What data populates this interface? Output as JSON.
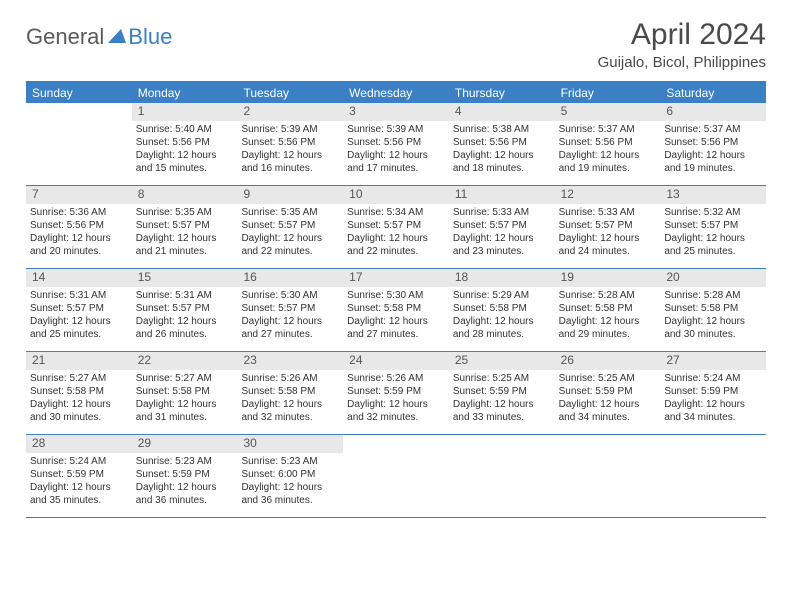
{
  "brand": {
    "part1": "General",
    "part2": "Blue"
  },
  "title": "April 2024",
  "location": "Guijalo, Bicol, Philippines",
  "colors": {
    "header_bg": "#3b7fc4",
    "header_text": "#ffffff",
    "daynum_bg": "#e8e8e8",
    "body_text": "#333333",
    "page_bg": "#ffffff",
    "rule": "#3b7fc4"
  },
  "typography": {
    "title_fontsize": 30,
    "location_fontsize": 15,
    "dayheader_fontsize": 12,
    "daynum_fontsize": 12,
    "body_fontsize": 10
  },
  "day_headers": [
    "Sunday",
    "Monday",
    "Tuesday",
    "Wednesday",
    "Thursday",
    "Friday",
    "Saturday"
  ],
  "weeks": [
    [
      null,
      {
        "n": "1",
        "sr": "Sunrise: 5:40 AM",
        "ss": "Sunset: 5:56 PM",
        "d1": "Daylight: 12 hours",
        "d2": "and 15 minutes."
      },
      {
        "n": "2",
        "sr": "Sunrise: 5:39 AM",
        "ss": "Sunset: 5:56 PM",
        "d1": "Daylight: 12 hours",
        "d2": "and 16 minutes."
      },
      {
        "n": "3",
        "sr": "Sunrise: 5:39 AM",
        "ss": "Sunset: 5:56 PM",
        "d1": "Daylight: 12 hours",
        "d2": "and 17 minutes."
      },
      {
        "n": "4",
        "sr": "Sunrise: 5:38 AM",
        "ss": "Sunset: 5:56 PM",
        "d1": "Daylight: 12 hours",
        "d2": "and 18 minutes."
      },
      {
        "n": "5",
        "sr": "Sunrise: 5:37 AM",
        "ss": "Sunset: 5:56 PM",
        "d1": "Daylight: 12 hours",
        "d2": "and 19 minutes."
      },
      {
        "n": "6",
        "sr": "Sunrise: 5:37 AM",
        "ss": "Sunset: 5:56 PM",
        "d1": "Daylight: 12 hours",
        "d2": "and 19 minutes."
      }
    ],
    [
      {
        "n": "7",
        "sr": "Sunrise: 5:36 AM",
        "ss": "Sunset: 5:56 PM",
        "d1": "Daylight: 12 hours",
        "d2": "and 20 minutes."
      },
      {
        "n": "8",
        "sr": "Sunrise: 5:35 AM",
        "ss": "Sunset: 5:57 PM",
        "d1": "Daylight: 12 hours",
        "d2": "and 21 minutes."
      },
      {
        "n": "9",
        "sr": "Sunrise: 5:35 AM",
        "ss": "Sunset: 5:57 PM",
        "d1": "Daylight: 12 hours",
        "d2": "and 22 minutes."
      },
      {
        "n": "10",
        "sr": "Sunrise: 5:34 AM",
        "ss": "Sunset: 5:57 PM",
        "d1": "Daylight: 12 hours",
        "d2": "and 22 minutes."
      },
      {
        "n": "11",
        "sr": "Sunrise: 5:33 AM",
        "ss": "Sunset: 5:57 PM",
        "d1": "Daylight: 12 hours",
        "d2": "and 23 minutes."
      },
      {
        "n": "12",
        "sr": "Sunrise: 5:33 AM",
        "ss": "Sunset: 5:57 PM",
        "d1": "Daylight: 12 hours",
        "d2": "and 24 minutes."
      },
      {
        "n": "13",
        "sr": "Sunrise: 5:32 AM",
        "ss": "Sunset: 5:57 PM",
        "d1": "Daylight: 12 hours",
        "d2": "and 25 minutes."
      }
    ],
    [
      {
        "n": "14",
        "sr": "Sunrise: 5:31 AM",
        "ss": "Sunset: 5:57 PM",
        "d1": "Daylight: 12 hours",
        "d2": "and 25 minutes."
      },
      {
        "n": "15",
        "sr": "Sunrise: 5:31 AM",
        "ss": "Sunset: 5:57 PM",
        "d1": "Daylight: 12 hours",
        "d2": "and 26 minutes."
      },
      {
        "n": "16",
        "sr": "Sunrise: 5:30 AM",
        "ss": "Sunset: 5:57 PM",
        "d1": "Daylight: 12 hours",
        "d2": "and 27 minutes."
      },
      {
        "n": "17",
        "sr": "Sunrise: 5:30 AM",
        "ss": "Sunset: 5:58 PM",
        "d1": "Daylight: 12 hours",
        "d2": "and 27 minutes."
      },
      {
        "n": "18",
        "sr": "Sunrise: 5:29 AM",
        "ss": "Sunset: 5:58 PM",
        "d1": "Daylight: 12 hours",
        "d2": "and 28 minutes."
      },
      {
        "n": "19",
        "sr": "Sunrise: 5:28 AM",
        "ss": "Sunset: 5:58 PM",
        "d1": "Daylight: 12 hours",
        "d2": "and 29 minutes."
      },
      {
        "n": "20",
        "sr": "Sunrise: 5:28 AM",
        "ss": "Sunset: 5:58 PM",
        "d1": "Daylight: 12 hours",
        "d2": "and 30 minutes."
      }
    ],
    [
      {
        "n": "21",
        "sr": "Sunrise: 5:27 AM",
        "ss": "Sunset: 5:58 PM",
        "d1": "Daylight: 12 hours",
        "d2": "and 30 minutes."
      },
      {
        "n": "22",
        "sr": "Sunrise: 5:27 AM",
        "ss": "Sunset: 5:58 PM",
        "d1": "Daylight: 12 hours",
        "d2": "and 31 minutes."
      },
      {
        "n": "23",
        "sr": "Sunrise: 5:26 AM",
        "ss": "Sunset: 5:58 PM",
        "d1": "Daylight: 12 hours",
        "d2": "and 32 minutes."
      },
      {
        "n": "24",
        "sr": "Sunrise: 5:26 AM",
        "ss": "Sunset: 5:59 PM",
        "d1": "Daylight: 12 hours",
        "d2": "and 32 minutes."
      },
      {
        "n": "25",
        "sr": "Sunrise: 5:25 AM",
        "ss": "Sunset: 5:59 PM",
        "d1": "Daylight: 12 hours",
        "d2": "and 33 minutes."
      },
      {
        "n": "26",
        "sr": "Sunrise: 5:25 AM",
        "ss": "Sunset: 5:59 PM",
        "d1": "Daylight: 12 hours",
        "d2": "and 34 minutes."
      },
      {
        "n": "27",
        "sr": "Sunrise: 5:24 AM",
        "ss": "Sunset: 5:59 PM",
        "d1": "Daylight: 12 hours",
        "d2": "and 34 minutes."
      }
    ],
    [
      {
        "n": "28",
        "sr": "Sunrise: 5:24 AM",
        "ss": "Sunset: 5:59 PM",
        "d1": "Daylight: 12 hours",
        "d2": "and 35 minutes."
      },
      {
        "n": "29",
        "sr": "Sunrise: 5:23 AM",
        "ss": "Sunset: 5:59 PM",
        "d1": "Daylight: 12 hours",
        "d2": "and 36 minutes."
      },
      {
        "n": "30",
        "sr": "Sunrise: 5:23 AM",
        "ss": "Sunset: 6:00 PM",
        "d1": "Daylight: 12 hours",
        "d2": "and 36 minutes."
      },
      null,
      null,
      null,
      null
    ]
  ]
}
